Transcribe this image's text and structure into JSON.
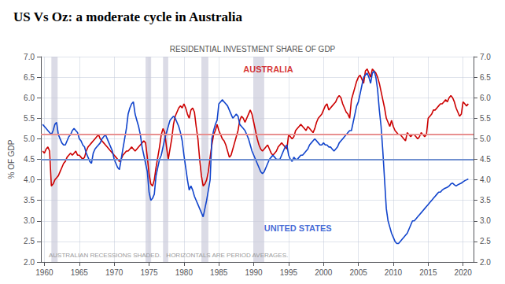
{
  "chart_data": {
    "type": "line",
    "title": "US Vs Oz: a moderate cycle in Australia",
    "subtitle": "RESIDENTIAL INVESTMENT SHARE OF GDP",
    "y_label": "% OF GDP",
    "footnote": "AUSTRALIAN RECESSIONS SHADED.   HORIZONTALS ARE PERIOD AVERAGES.",
    "grid": true,
    "xlim": [
      1959.5,
      2021.5
    ],
    "xticks": [
      1960,
      1965,
      1970,
      1975,
      1980,
      1985,
      1990,
      1995,
      2000,
      2005,
      2010,
      2015,
      2020
    ],
    "ylim": [
      2.0,
      7.0
    ],
    "yticks": [
      {
        "value": 2.0,
        "label": "2.0"
      },
      2.5,
      {
        "value": 3.0,
        "label": "3.0"
      },
      3.5,
      {
        "value": 4.0,
        "label": "4.0"
      },
      4.5,
      {
        "value": 5.0,
        "label": "5.0"
      },
      5.5,
      {
        "value": 6.0,
        "label": "6.0"
      },
      6.5,
      {
        "value": 7.0,
        "label": "7.0"
      }
    ],
    "y2lim": [
      2.0,
      7.0
    ],
    "y2ticks": [
      {
        "value": 2.0,
        "label": "2.0"
      },
      2.5,
      {
        "value": 3.0,
        "label": "3.0"
      },
      3.5,
      {
        "value": 4.0,
        "label": "4.0"
      },
      4.5,
      {
        "value": 5.0,
        "label": "5.0"
      },
      5.5,
      {
        "value": 6.0,
        "label": "6.0"
      },
      6.5,
      {
        "value": 7.0,
        "label": "7.0"
      }
    ],
    "hlines": [
      {
        "y": 5.1,
        "color": "#e89090"
      },
      {
        "y": 4.5,
        "color": "#7090d0"
      }
    ],
    "shade_color": "#c8c8d8",
    "shaded_ranges": [
      [
        1961.0,
        1961.9
      ],
      [
        1974.5,
        1975.3
      ],
      [
        1977.0,
        1977.75
      ],
      [
        1982.5,
        1983.5
      ],
      [
        1990.0,
        1991.5
      ]
    ],
    "annotations": [
      {
        "text": "AUSTRALIA",
        "x": 1988.5,
        "y": 6.58,
        "color": "#cc0000"
      },
      {
        "text": "UNITED STATES",
        "x": 1991.5,
        "y": 2.72,
        "color": "#1144cc"
      }
    ],
    "x": [
      1959.75,
      1960.0,
      1960.25,
      1960.5,
      1960.75,
      1961.0,
      1961.25,
      1961.5,
      1961.75,
      1962.0,
      1962.25,
      1962.5,
      1962.75,
      1963.0,
      1963.25,
      1963.5,
      1963.75,
      1964.0,
      1964.25,
      1964.5,
      1964.75,
      1965.0,
      1965.25,
      1965.5,
      1965.75,
      1966.0,
      1966.25,
      1966.5,
      1966.75,
      1967.0,
      1967.25,
      1967.5,
      1967.75,
      1968.0,
      1968.25,
      1968.5,
      1968.75,
      1969.0,
      1969.25,
      1969.5,
      1969.75,
      1970.0,
      1970.25,
      1970.5,
      1970.75,
      1971.0,
      1971.25,
      1971.5,
      1971.75,
      1972.0,
      1972.25,
      1972.5,
      1972.75,
      1973.0,
      1973.25,
      1973.5,
      1973.75,
      1974.0,
      1974.25,
      1974.5,
      1974.75,
      1975.0,
      1975.25,
      1975.5,
      1975.75,
      1976.0,
      1976.25,
      1976.5,
      1976.75,
      1977.0,
      1977.25,
      1977.5,
      1977.75,
      1978.0,
      1978.25,
      1978.5,
      1978.75,
      1979.0,
      1979.25,
      1979.5,
      1979.75,
      1980.0,
      1980.25,
      1980.5,
      1980.75,
      1981.0,
      1981.25,
      1981.5,
      1981.75,
      1982.0,
      1982.25,
      1982.5,
      1982.75,
      1983.0,
      1983.25,
      1983.5,
      1983.75,
      1984.0,
      1984.25,
      1984.5,
      1984.75,
      1985.0,
      1985.25,
      1985.5,
      1985.75,
      1986.0,
      1986.25,
      1986.5,
      1986.75,
      1987.0,
      1987.25,
      1987.5,
      1987.75,
      1988.0,
      1988.25,
      1988.5,
      1988.75,
      1989.0,
      1989.25,
      1989.5,
      1989.75,
      1990.0,
      1990.25,
      1990.5,
      1990.75,
      1991.0,
      1991.25,
      1991.5,
      1991.75,
      1992.0,
      1992.25,
      1992.5,
      1992.75,
      1993.0,
      1993.25,
      1993.5,
      1993.75,
      1994.0,
      1994.25,
      1994.5,
      1994.75,
      1995.0,
      1995.25,
      1995.5,
      1995.75,
      1996.0,
      1996.25,
      1996.5,
      1996.75,
      1997.0,
      1997.25,
      1997.5,
      1997.75,
      1998.0,
      1998.25,
      1998.5,
      1998.75,
      1999.0,
      1999.25,
      1999.5,
      1999.75,
      2000.0,
      2000.25,
      2000.5,
      2000.75,
      2001.0,
      2001.25,
      2001.5,
      2001.75,
      2002.0,
      2002.25,
      2002.5,
      2002.75,
      2003.0,
      2003.25,
      2003.5,
      2003.75,
      2004.0,
      2004.25,
      2004.5,
      2004.75,
      2005.0,
      2005.25,
      2005.5,
      2005.75,
      2006.0,
      2006.25,
      2006.5,
      2006.75,
      2007.0,
      2007.25,
      2007.5,
      2007.75,
      2008.0,
      2008.25,
      2008.5,
      2008.75,
      2009.0,
      2009.25,
      2009.5,
      2009.75,
      2010.0,
      2010.25,
      2010.5,
      2010.75,
      2011.0,
      2011.25,
      2011.5,
      2011.75,
      2012.0,
      2012.25,
      2012.5,
      2012.75,
      2013.0,
      2013.25,
      2013.5,
      2013.75,
      2014.0,
      2014.25,
      2014.5,
      2014.75,
      2015.0,
      2015.25,
      2015.5,
      2015.75,
      2016.0,
      2016.25,
      2016.5,
      2016.75,
      2017.0,
      2017.25,
      2017.5,
      2017.75,
      2018.0,
      2018.25,
      2018.5,
      2018.75,
      2019.0,
      2019.25,
      2019.5,
      2019.75,
      2020.0,
      2020.25,
      2020.5,
      2020.75
    ],
    "series": [
      {
        "name": "AUSTRALIA",
        "color": "#cc0000",
        "values": [
          4.7,
          4.65,
          4.75,
          4.8,
          4.7,
          3.85,
          3.9,
          4.0,
          4.05,
          4.1,
          4.2,
          4.3,
          4.4,
          4.45,
          4.55,
          4.6,
          4.65,
          4.6,
          4.65,
          4.7,
          4.6,
          4.6,
          4.55,
          4.5,
          4.55,
          4.7,
          4.8,
          4.85,
          4.9,
          4.95,
          5.0,
          5.05,
          5.1,
          5.0,
          4.95,
          4.9,
          4.85,
          4.8,
          4.75,
          4.7,
          4.65,
          4.6,
          4.55,
          4.5,
          4.45,
          4.5,
          4.6,
          4.65,
          4.7,
          4.7,
          4.75,
          4.8,
          4.75,
          4.7,
          4.75,
          4.8,
          4.85,
          4.9,
          4.95,
          4.9,
          4.55,
          4.15,
          3.9,
          3.85,
          4.0,
          4.3,
          4.55,
          4.8,
          5.1,
          5.25,
          5.15,
          4.8,
          4.5,
          4.75,
          5.0,
          5.35,
          5.55,
          5.65,
          5.75,
          5.8,
          5.75,
          5.85,
          5.75,
          5.6,
          5.5,
          5.7,
          5.75,
          5.65,
          5.3,
          5.0,
          4.5,
          4.1,
          3.85,
          3.9,
          4.0,
          4.2,
          4.55,
          4.85,
          5.1,
          5.2,
          5.35,
          5.2,
          5.1,
          5.0,
          4.95,
          4.85,
          4.7,
          4.55,
          4.6,
          4.75,
          4.9,
          5.05,
          5.2,
          5.45,
          5.55,
          5.5,
          5.4,
          5.5,
          5.6,
          5.7,
          5.6,
          5.4,
          5.2,
          5.0,
          4.85,
          4.75,
          4.7,
          4.75,
          4.8,
          4.85,
          4.75,
          4.65,
          4.6,
          4.65,
          4.7,
          4.8,
          4.85,
          4.9,
          4.85,
          4.8,
          4.75,
          5.1,
          5.05,
          5.0,
          5.05,
          5.2,
          5.25,
          5.3,
          5.35,
          5.3,
          5.25,
          5.2,
          5.3,
          5.25,
          5.2,
          5.15,
          5.25,
          5.4,
          5.5,
          5.55,
          5.6,
          5.7,
          5.8,
          5.85,
          5.7,
          5.75,
          5.8,
          5.85,
          5.9,
          6.0,
          6.05,
          6.0,
          5.85,
          5.75,
          5.65,
          5.6,
          5.5,
          5.95,
          6.1,
          6.25,
          6.4,
          6.5,
          6.55,
          6.45,
          6.35,
          6.65,
          6.7,
          6.6,
          6.5,
          6.7,
          6.65,
          6.6,
          6.5,
          6.35,
          6.15,
          5.95,
          5.75,
          5.5,
          5.4,
          5.3,
          5.45,
          5.3,
          5.2,
          5.15,
          5.1,
          5.1,
          5.05,
          5.0,
          4.95,
          5.15,
          5.1,
          5.05,
          5.1,
          5.1,
          5.05,
          5.0,
          5.05,
          5.15,
          5.1,
          5.05,
          5.1,
          5.5,
          5.55,
          5.6,
          5.7,
          5.7,
          5.75,
          5.8,
          5.85,
          5.85,
          5.9,
          5.95,
          5.9,
          6.0,
          6.05,
          6.0,
          5.9,
          5.75,
          5.65,
          5.55,
          5.6,
          5.9,
          5.85,
          5.8,
          5.85
        ]
      },
      {
        "name": "UNITED STATES",
        "color": "#1144cc",
        "values": [
          5.35,
          5.3,
          5.25,
          5.2,
          5.15,
          5.1,
          5.2,
          5.35,
          5.4,
          5.1,
          5.0,
          4.9,
          4.85,
          4.85,
          4.95,
          5.05,
          5.1,
          5.2,
          5.25,
          5.2,
          5.15,
          5.0,
          4.95,
          4.85,
          4.8,
          4.65,
          4.55,
          4.45,
          4.4,
          4.65,
          4.75,
          4.8,
          4.85,
          4.9,
          5.0,
          5.05,
          5.1,
          5.0,
          4.9,
          4.8,
          4.7,
          4.5,
          4.4,
          4.3,
          4.25,
          4.5,
          4.75,
          5.0,
          5.25,
          5.6,
          5.75,
          5.85,
          5.9,
          5.6,
          5.45,
          5.3,
          5.1,
          4.8,
          4.6,
          4.4,
          4.2,
          3.7,
          3.5,
          3.55,
          3.65,
          4.1,
          4.3,
          4.5,
          4.6,
          4.8,
          5.0,
          5.15,
          5.3,
          5.45,
          5.5,
          5.55,
          5.5,
          5.4,
          5.3,
          5.15,
          4.95,
          4.6,
          4.3,
          4.0,
          3.75,
          3.85,
          3.75,
          3.6,
          3.5,
          3.4,
          3.3,
          3.2,
          3.1,
          3.3,
          3.5,
          3.75,
          4.0,
          5.0,
          5.2,
          5.35,
          5.45,
          5.85,
          5.9,
          5.95,
          5.9,
          5.85,
          5.8,
          5.7,
          5.6,
          5.5,
          5.55,
          5.6,
          5.55,
          5.35,
          5.3,
          5.25,
          5.2,
          5.1,
          5.0,
          4.85,
          4.7,
          4.6,
          4.5,
          4.4,
          4.3,
          4.2,
          4.15,
          4.2,
          4.3,
          4.4,
          4.5,
          4.55,
          4.6,
          4.55,
          4.5,
          4.5,
          4.5,
          4.6,
          4.7,
          4.8,
          4.85,
          4.6,
          4.5,
          4.45,
          4.55,
          4.5,
          4.5,
          4.55,
          4.6,
          4.6,
          4.65,
          4.7,
          4.75,
          4.85,
          4.9,
          4.95,
          5.0,
          4.95,
          4.9,
          4.85,
          4.85,
          4.9,
          4.85,
          4.85,
          4.8,
          4.8,
          4.75,
          4.7,
          4.75,
          4.8,
          4.9,
          4.95,
          5.0,
          5.05,
          5.1,
          5.15,
          5.2,
          5.2,
          5.4,
          5.6,
          5.8,
          5.9,
          6.1,
          6.3,
          6.5,
          6.55,
          6.6,
          6.5,
          6.35,
          6.6,
          6.65,
          6.5,
          6.2,
          5.7,
          5.3,
          4.7,
          4.0,
          3.3,
          3.0,
          2.85,
          2.7,
          2.6,
          2.5,
          2.45,
          2.45,
          2.5,
          2.55,
          2.6,
          2.65,
          2.7,
          2.8,
          2.9,
          3.0,
          3.0,
          3.05,
          3.1,
          3.15,
          3.2,
          3.25,
          3.3,
          3.35,
          3.4,
          3.45,
          3.5,
          3.55,
          3.6,
          3.65,
          3.7,
          3.7,
          3.75,
          3.78,
          3.8,
          3.82,
          3.85,
          3.9,
          3.92,
          3.88,
          3.85,
          3.88,
          3.9,
          3.92,
          3.95,
          3.98,
          4.0,
          4.02
        ]
      }
    ]
  }
}
